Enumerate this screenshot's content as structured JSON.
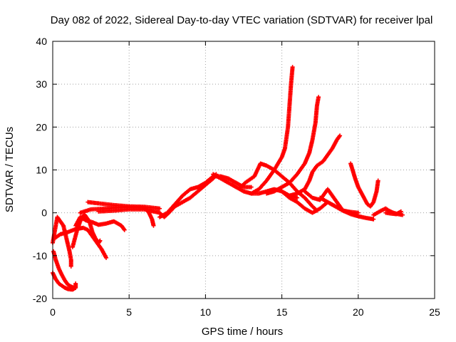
{
  "chart_data": {
    "type": "scatter",
    "title": "Day 082 of 2022, Sidereal Day-to-day VTEC variation (SDTVAR) for receiver lpal",
    "xlabel": "GPS time / hours",
    "ylabel": "SDTVAR / TECUs",
    "xlim": [
      0,
      25
    ],
    "ylim": [
      -20,
      40
    ],
    "x_ticks": [
      0,
      5,
      10,
      15,
      20,
      25
    ],
    "y_ticks": [
      -20,
      -10,
      0,
      10,
      20,
      30,
      40
    ],
    "x_tick_labels": [
      "0",
      "5",
      "10",
      "15",
      "20",
      "25"
    ],
    "y_tick_labels": [
      "-20",
      "-10",
      "0",
      "10",
      "20",
      "30",
      "40"
    ],
    "grid": true,
    "marker": "plus",
    "marker_color": "#ff0000",
    "series": [
      {
        "name": "s1",
        "points": [
          [
            0,
            -14
          ],
          [
            0.2,
            -15.5
          ],
          [
            0.4,
            -16.5
          ],
          [
            0.6,
            -17
          ],
          [
            0.8,
            -17.5
          ],
          [
            1.0,
            -17.8
          ],
          [
            1.3,
            -17.9
          ],
          [
            1.5,
            -17.5
          ],
          [
            1.5,
            -16.5
          ]
        ]
      },
      {
        "name": "s2",
        "points": [
          [
            0.05,
            -9
          ],
          [
            0.2,
            -11
          ],
          [
            0.4,
            -13
          ],
          [
            0.6,
            -14.5
          ],
          [
            0.8,
            -15.8
          ],
          [
            1.0,
            -16.8
          ],
          [
            1.2,
            -17.2
          ],
          [
            1.4,
            -17.5
          ]
        ]
      },
      {
        "name": "s3",
        "points": [
          [
            0,
            -7
          ],
          [
            0.2,
            -3
          ],
          [
            0.3,
            -1
          ],
          [
            0.5,
            -2
          ],
          [
            0.7,
            -3
          ],
          [
            0.9,
            -6
          ],
          [
            1.1,
            -9
          ],
          [
            1.2,
            -11
          ],
          [
            1.2,
            -12.5
          ]
        ]
      },
      {
        "name": "s4",
        "points": [
          [
            0.1,
            -6
          ],
          [
            0.5,
            -5
          ],
          [
            1.0,
            -4.5
          ],
          [
            1.5,
            -3.8
          ],
          [
            2.0,
            -3.5
          ],
          [
            2.3,
            -4
          ],
          [
            2.6,
            -5.5
          ],
          [
            2.9,
            -7
          ],
          [
            3.2,
            -8.5
          ],
          [
            3.5,
            -10.5
          ]
        ]
      },
      {
        "name": "s5",
        "points": [
          [
            1.3,
            -8
          ],
          [
            1.6,
            -4
          ],
          [
            1.9,
            -1
          ],
          [
            2.1,
            -0.5
          ],
          [
            2.4,
            -2
          ],
          [
            2.6,
            -4.5
          ],
          [
            2.8,
            -6
          ],
          [
            3.0,
            -7
          ],
          [
            3.1,
            -6.5
          ]
        ]
      },
      {
        "name": "s6",
        "points": [
          [
            1.5,
            -3
          ],
          [
            1.8,
            -1
          ],
          [
            2.2,
            -1.8
          ],
          [
            2.6,
            -2.2
          ],
          [
            3.0,
            -2.8
          ],
          [
            3.5,
            -2.5
          ],
          [
            4.0,
            -2
          ],
          [
            4.5,
            -3
          ],
          [
            4.7,
            -4
          ]
        ]
      },
      {
        "name": "s7",
        "points": [
          [
            1.8,
            0
          ],
          [
            2.5,
            0.8
          ],
          [
            3.0,
            0.9
          ],
          [
            3.5,
            1
          ],
          [
            4.0,
            1.2
          ],
          [
            5.0,
            1.3
          ],
          [
            6.0,
            1.2
          ],
          [
            6.3,
            0
          ],
          [
            6.5,
            -1.5
          ],
          [
            6.6,
            -3
          ]
        ]
      },
      {
        "name": "s8",
        "points": [
          [
            2.3,
            2.5
          ],
          [
            3.0,
            2.2
          ],
          [
            4.0,
            1.8
          ],
          [
            5.0,
            1.5
          ],
          [
            6.0,
            1.4
          ],
          [
            7.0,
            1.0
          ]
        ]
      },
      {
        "name": "s9",
        "points": [
          [
            3.0,
            0.3
          ],
          [
            4.0,
            0.5
          ],
          [
            5.0,
            0.8
          ],
          [
            6.0,
            0.8
          ],
          [
            7.0,
            0
          ],
          [
            7.3,
            -1
          ],
          [
            7.6,
            0
          ],
          [
            8.0,
            1.5
          ],
          [
            8.5,
            2.5
          ],
          [
            9.0,
            3.5
          ],
          [
            9.5,
            5
          ],
          [
            10.0,
            6.5
          ],
          [
            10.5,
            8
          ],
          [
            10.7,
            9
          ]
        ]
      },
      {
        "name": "s10",
        "points": [
          [
            7.0,
            -1
          ],
          [
            7.5,
            0
          ],
          [
            8.0,
            2
          ],
          [
            8.5,
            4
          ],
          [
            9.0,
            5.5
          ],
          [
            9.5,
            6
          ],
          [
            10.0,
            7
          ],
          [
            10.5,
            8.5
          ],
          [
            11.0,
            8.5
          ],
          [
            11.5,
            8
          ],
          [
            12.0,
            7
          ],
          [
            12.5,
            6
          ],
          [
            13.0,
            6
          ]
        ]
      },
      {
        "name": "s11",
        "points": [
          [
            10.5,
            9
          ],
          [
            11.0,
            8
          ],
          [
            11.5,
            7
          ],
          [
            12.0,
            6
          ],
          [
            12.5,
            5
          ],
          [
            13.0,
            4.5
          ],
          [
            13.5,
            4.5
          ],
          [
            14.0,
            5
          ],
          [
            14.5,
            5.5
          ],
          [
            15.0,
            5
          ],
          [
            15.5,
            4
          ],
          [
            16.0,
            3.5
          ]
        ]
      },
      {
        "name": "s12",
        "points": [
          [
            12.3,
            6
          ],
          [
            12.6,
            7
          ],
          [
            13.0,
            8
          ],
          [
            13.2,
            8.5
          ],
          [
            13.4,
            10
          ],
          [
            13.6,
            11.5
          ],
          [
            14.0,
            11
          ],
          [
            14.5,
            10
          ],
          [
            15.0,
            8.5
          ],
          [
            15.5,
            7
          ],
          [
            16.0,
            5
          ],
          [
            16.5,
            3.5
          ],
          [
            17.0,
            1.5
          ],
          [
            17.3,
            0.5
          ]
        ]
      },
      {
        "name": "s13",
        "points": [
          [
            13.0,
            4.5
          ],
          [
            13.5,
            5.5
          ],
          [
            14.0,
            7.5
          ],
          [
            14.5,
            10
          ],
          [
            15.0,
            13
          ],
          [
            15.2,
            15
          ],
          [
            15.4,
            20
          ],
          [
            15.5,
            25
          ],
          [
            15.6,
            30
          ],
          [
            15.7,
            34
          ]
        ]
      },
      {
        "name": "s14",
        "points": [
          [
            14.0,
            4.5
          ],
          [
            14.5,
            5
          ],
          [
            15.0,
            6
          ],
          [
            15.5,
            7
          ],
          [
            16.0,
            9
          ],
          [
            16.5,
            11.5
          ],
          [
            16.8,
            14
          ],
          [
            17.0,
            17
          ],
          [
            17.2,
            21
          ],
          [
            17.3,
            25
          ],
          [
            17.4,
            27
          ]
        ]
      },
      {
        "name": "s15",
        "points": [
          [
            15.5,
            4
          ],
          [
            16.0,
            4.5
          ],
          [
            16.5,
            5.5
          ],
          [
            16.8,
            7.5
          ],
          [
            17.0,
            9.5
          ],
          [
            17.3,
            11
          ],
          [
            17.7,
            12
          ],
          [
            18.0,
            13.5
          ],
          [
            18.3,
            15
          ],
          [
            18.6,
            17
          ],
          [
            18.8,
            18
          ]
        ]
      },
      {
        "name": "s16",
        "points": [
          [
            15.0,
            5
          ],
          [
            15.5,
            3.5
          ],
          [
            16.0,
            2.5
          ],
          [
            16.5,
            1
          ],
          [
            17.0,
            0
          ],
          [
            17.5,
            1
          ],
          [
            18.0,
            2.5
          ],
          [
            18.5,
            1.5
          ],
          [
            19.0,
            0.5
          ],
          [
            19.5,
            0.2
          ],
          [
            20.0,
            0
          ]
        ]
      },
      {
        "name": "s17",
        "points": [
          [
            16.5,
            5
          ],
          [
            17.0,
            3.5
          ],
          [
            17.5,
            3
          ],
          [
            18.0,
            5.5
          ],
          [
            18.3,
            4
          ],
          [
            18.7,
            2
          ],
          [
            19.0,
            0.5
          ],
          [
            19.5,
            0
          ]
        ]
      },
      {
        "name": "s18",
        "points": [
          [
            17.5,
            3.5
          ],
          [
            18.0,
            2.5
          ],
          [
            18.5,
            1.5
          ],
          [
            19.0,
            0.5
          ],
          [
            19.5,
            -0.3
          ],
          [
            20.0,
            -0.8
          ],
          [
            20.5,
            -1.2
          ],
          [
            21.0,
            -1.5
          ]
        ]
      },
      {
        "name": "s19",
        "points": [
          [
            19.5,
            11.5
          ],
          [
            19.8,
            8
          ],
          [
            20.0,
            6
          ],
          [
            20.3,
            4
          ],
          [
            20.6,
            2
          ],
          [
            20.8,
            1.5
          ],
          [
            21.0,
            2.5
          ],
          [
            21.2,
            5
          ],
          [
            21.3,
            7.5
          ]
        ]
      },
      {
        "name": "s20",
        "points": [
          [
            21.0,
            -0.5
          ],
          [
            21.5,
            0.5
          ],
          [
            21.8,
            1
          ],
          [
            22.0,
            0.5
          ],
          [
            22.3,
            0
          ],
          [
            22.6,
            -0.3
          ],
          [
            22.9,
            -0.5
          ]
        ]
      },
      {
        "name": "s21",
        "points": [
          [
            21.8,
            0
          ],
          [
            22.2,
            -0.2
          ],
          [
            22.5,
            -0.3
          ],
          [
            22.8,
            0.3
          ]
        ]
      }
    ]
  }
}
